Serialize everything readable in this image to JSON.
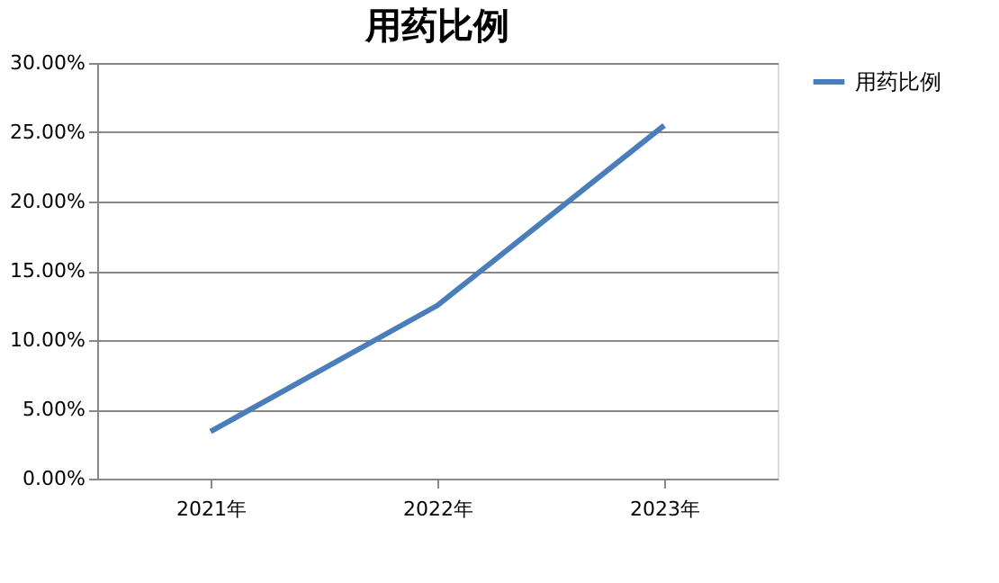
{
  "chart_data": {
    "type": "line",
    "title": "用药比例",
    "categories": [
      "2021年",
      "2022年",
      "2023年"
    ],
    "series": [
      {
        "name": "用药比例",
        "color": "#4a7ebb",
        "values": [
          3.4,
          12.5,
          25.5
        ]
      }
    ],
    "ylim": [
      0,
      30
    ],
    "yticks": [
      {
        "value": 0,
        "label": "0.00%"
      },
      {
        "value": 5,
        "label": "5.00%"
      },
      {
        "value": 10,
        "label": "10.00%"
      },
      {
        "value": 15,
        "label": "15.00%"
      },
      {
        "value": 20,
        "label": "20.00%"
      },
      {
        "value": 25,
        "label": "25.00%"
      },
      {
        "value": 30,
        "label": "30.00%"
      }
    ],
    "grid": "y",
    "legend": "right",
    "marker": "none",
    "line_style": "solid"
  }
}
